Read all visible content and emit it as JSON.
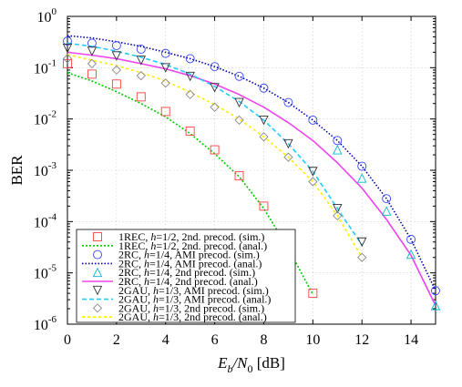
{
  "chart_data": {
    "type": "line",
    "title": "",
    "xlabel_parts": [
      "E",
      "b",
      "/N",
      "0",
      " [dB]"
    ],
    "ylabel": "BER",
    "xlim": [
      0,
      15
    ],
    "ylim": [
      1e-06,
      1
    ],
    "y_scale": "log",
    "grid": true,
    "legend_position": "bottom-left",
    "x_ticks": [
      "0",
      "2",
      "4",
      "6",
      "8",
      "10",
      "12",
      "14"
    ],
    "y_ticks": [
      {
        "base": "10",
        "exp": "0"
      },
      {
        "base": "10",
        "exp": "-1"
      },
      {
        "base": "10",
        "exp": "-2"
      },
      {
        "base": "10",
        "exp": "-3"
      },
      {
        "base": "10",
        "exp": "-4"
      },
      {
        "base": "10",
        "exp": "-5"
      },
      {
        "base": "10",
        "exp": "-6"
      }
    ],
    "series": [
      {
        "name": "1REC, h=1/2, 2nd. precod. (sim.)",
        "legend_parts": [
          "1REC, ",
          "h",
          "=1/2, 2nd. precod. (sim.)"
        ],
        "kind": "markers",
        "marker": "square",
        "color": "#ff4040",
        "x": [
          0,
          1,
          2,
          3,
          4,
          5,
          6,
          7,
          8,
          9,
          10
        ],
        "y": [
          0.12,
          0.075,
          0.048,
          0.027,
          0.014,
          0.0058,
          0.0025,
          0.00078,
          0.0002,
          3.4e-05,
          4e-06
        ]
      },
      {
        "name": "1REC, h=1/2, 2nd. precod. (anal.)",
        "legend_parts": [
          "1REC, ",
          "h",
          "=1/2, 2nd. precod. (anal.)"
        ],
        "kind": "line",
        "dash": "2 2",
        "color": "#00cc00",
        "x": [
          0,
          1,
          2,
          3,
          4,
          5,
          6,
          7,
          8,
          9,
          10
        ],
        "y": [
          0.08,
          0.055,
          0.034,
          0.02,
          0.011,
          0.0052,
          0.0021,
          0.00075,
          0.00018,
          3e-05,
          3.8e-06
        ]
      },
      {
        "name": "2RC, h=1/4, AMI precod. (sim.)",
        "legend_parts": [
          "2RC, ",
          "h",
          "=1/4, AMI precod. (sim.)"
        ],
        "kind": "markers",
        "marker": "circle",
        "color": "#3344ff",
        "x": [
          0,
          1,
          2,
          3,
          4,
          5,
          6,
          7,
          8,
          9,
          10,
          11,
          12,
          13,
          14,
          15
        ],
        "y": [
          0.33,
          0.3,
          0.27,
          0.23,
          0.19,
          0.15,
          0.105,
          0.068,
          0.04,
          0.021,
          0.0095,
          0.0038,
          0.0012,
          0.00028,
          4.5e-05,
          4.5e-06
        ]
      },
      {
        "name": "2RC, h=1/4, AMI precod. (anal.)",
        "legend_parts": [
          "2RC, ",
          "h",
          "=1/4, AMI precod. (anal.)"
        ],
        "kind": "line",
        "dash": "1.5 2",
        "color": "#0000aa",
        "x": [
          0,
          1,
          2,
          3,
          4,
          5,
          6,
          7,
          8,
          9,
          10,
          11,
          12,
          13,
          14,
          15
        ],
        "y": [
          0.42,
          0.38,
          0.32,
          0.26,
          0.2,
          0.15,
          0.105,
          0.068,
          0.04,
          0.021,
          0.0095,
          0.0038,
          0.0012,
          0.00028,
          4.5e-05,
          4.5e-06
        ]
      },
      {
        "name": "2RC, h=1/4, 2nd precod. (sim.)",
        "legend_parts": [
          "2RC, ",
          "h",
          "=1/4, 2nd precod. (sim.)"
        ],
        "kind": "markers",
        "marker": "triangle-up",
        "color": "#00bbcc",
        "x": [
          11,
          12,
          13,
          14,
          15
        ],
        "y": [
          0.0025,
          0.0007,
          0.00016,
          2.3e-05,
          2.3e-06
        ]
      },
      {
        "name": "2RC, h=1/4, 2nd precod. (anal.)",
        "legend_parts": [
          "2RC, ",
          "h",
          "=1/4, 2nd precod. (anal.)"
        ],
        "kind": "line",
        "dash": "",
        "color": "#ee44ee",
        "x": [
          0,
          1,
          2,
          3,
          4,
          5,
          6,
          7,
          8,
          9,
          10,
          11,
          12,
          13,
          14,
          15
        ],
        "y": [
          0.2,
          0.175,
          0.15,
          0.12,
          0.095,
          0.07,
          0.048,
          0.03,
          0.017,
          0.0085,
          0.0038,
          0.0014,
          0.00045,
          0.00011,
          2.2e-05,
          2.3e-06
        ]
      },
      {
        "name": "2GAU, h=1/3, AMI precod. (sim.)",
        "legend_parts": [
          "2GAU, ",
          "h",
          "=1/3, AMI precod. (sim.)"
        ],
        "kind": "markers",
        "marker": "triangle-down",
        "color": "#333333",
        "x": [
          0,
          1,
          2,
          3,
          4,
          5,
          6,
          7,
          8,
          9,
          10,
          11,
          12
        ],
        "y": [
          0.24,
          0.21,
          0.17,
          0.14,
          0.1,
          0.068,
          0.041,
          0.021,
          0.0095,
          0.0033,
          0.00095,
          0.00018,
          4e-05
        ]
      },
      {
        "name": "2GAU, h=1/3, AMI precod. (anal.)",
        "legend_parts": [
          "2GAU, ",
          "h",
          "=1/3, AMI precod. (anal.)"
        ],
        "kind": "line",
        "dash": "5 3",
        "color": "#22ccff",
        "x": [
          0,
          1,
          2,
          3,
          4,
          5,
          6,
          7,
          8,
          9,
          10,
          11,
          12
        ],
        "y": [
          0.3,
          0.26,
          0.21,
          0.16,
          0.115,
          0.075,
          0.043,
          0.022,
          0.0095,
          0.0033,
          0.00095,
          0.00018,
          3.5e-05
        ]
      },
      {
        "name": "2GAU, h=1/3, 2nd precod. (sim.)",
        "legend_parts": [
          "2GAU, ",
          "h",
          "=1/3, 2nd precod. (sim.)"
        ],
        "kind": "markers",
        "marker": "diamond",
        "color": "#888888",
        "x": [
          0,
          1,
          2,
          3,
          4,
          5,
          6,
          7,
          8,
          9,
          10,
          11,
          12
        ],
        "y": [
          0.15,
          0.12,
          0.09,
          0.07,
          0.05,
          0.03,
          0.017,
          0.0095,
          0.0045,
          0.0018,
          0.0006,
          0.00013,
          2e-05
        ]
      },
      {
        "name": "2GAU, h=1/3, 2nd precod. (anal.)",
        "legend_parts": [
          "2GAU, ",
          "h",
          "=1/3, 2nd precod. (anal.)"
        ],
        "kind": "line",
        "dash": "3 3",
        "color": "#ffee00",
        "x": [
          0,
          1,
          2,
          3,
          4,
          5,
          6,
          7,
          8,
          9,
          10,
          11,
          12
        ],
        "y": [
          0.18,
          0.14,
          0.11,
          0.08,
          0.055,
          0.033,
          0.019,
          0.01,
          0.0045,
          0.0018,
          0.0006,
          0.00013,
          2e-05
        ]
      }
    ]
  }
}
